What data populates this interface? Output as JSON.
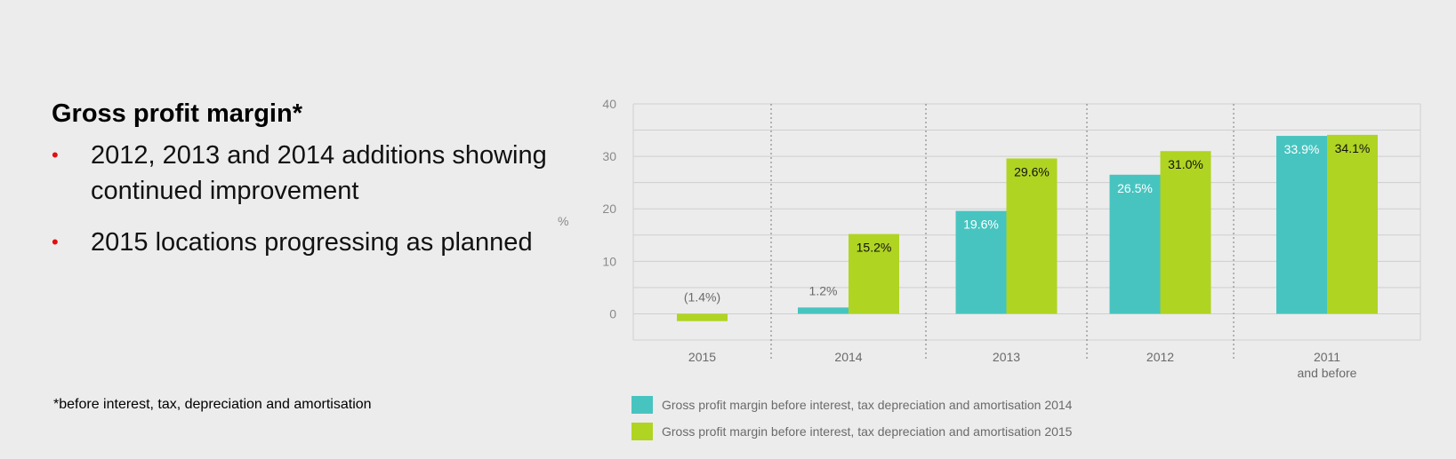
{
  "text": {
    "heading": "Gross profit margin*",
    "bullets": [
      "2012, 2013 and 2014 additions showing continued improvement",
      "2015 locations progressing as planned"
    ],
    "bullet_glyph": "•",
    "footnote": "*before interest, tax, depreciation and amortisation"
  },
  "colors": {
    "series_2014": "#47c4c0",
    "series_2015": "#b0d422",
    "bullet": "#e01010"
  },
  "chart_data": {
    "type": "bar",
    "ylabel": "%",
    "ylim": [
      -5,
      40
    ],
    "yticks": [
      0,
      10,
      20,
      30,
      40
    ],
    "grid": true,
    "categories": [
      {
        "label": "2015",
        "sublabel": ""
      },
      {
        "label": "2014",
        "sublabel": ""
      },
      {
        "label": "2013",
        "sublabel": ""
      },
      {
        "label": "2012",
        "sublabel": ""
      },
      {
        "label": "2011",
        "sublabel": "and before"
      }
    ],
    "series": [
      {
        "name": "Gross profit margin before interest, tax depreciation and amortisation 2014",
        "values": [
          null,
          1.2,
          19.6,
          26.5,
          33.9
        ],
        "labels": [
          "",
          "1.2%",
          "19.6%",
          "26.5%",
          "33.9%"
        ]
      },
      {
        "name": "Gross profit margin before interest, tax depreciation and amortisation 2015",
        "values": [
          -1.4,
          15.2,
          29.6,
          31.0,
          34.1
        ],
        "labels": [
          "(1.4%)",
          "15.2%",
          "29.6%",
          "31.0%",
          "34.1%"
        ]
      }
    ]
  }
}
